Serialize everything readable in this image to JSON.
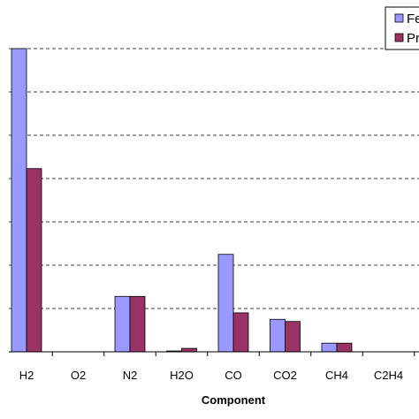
{
  "chart_data": {
    "type": "bar",
    "xlabel": "Component",
    "ylabel": "",
    "title": "",
    "categories": [
      "H2",
      "O2",
      "N2",
      "H2O",
      "CO",
      "CO2",
      "CH4",
      "C2H4"
    ],
    "ylim": [
      0,
      7
    ],
    "grid": "horizontal dashed",
    "legend_position": "top-right",
    "series": [
      {
        "name": "Fe",
        "color": "#9999FF",
        "values": [
          7.0,
          0,
          1.28,
          0.02,
          2.25,
          0.75,
          0.2,
          0
        ]
      },
      {
        "name": "Pr",
        "color": "#993366",
        "values": [
          4.23,
          0,
          1.28,
          0.08,
          0.9,
          0.7,
          0.2,
          0
        ]
      }
    ]
  }
}
